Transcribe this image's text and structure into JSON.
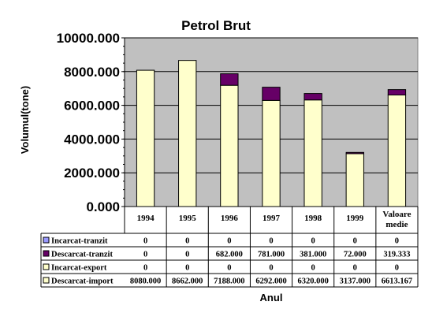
{
  "chart_data": {
    "type": "bar",
    "stacked": true,
    "title": "Petrol Brut",
    "xlabel": "Anul",
    "ylabel": "Volumul(tone)",
    "ylim": [
      0,
      10000
    ],
    "yticks": [
      "0.000",
      "2000.000",
      "4000.000",
      "6000.000",
      "8000.000",
      "10000.000"
    ],
    "ytick_values": [
      0,
      2000,
      4000,
      6000,
      8000,
      10000
    ],
    "grid": true,
    "plot_background": "#c0c0c0",
    "categories": [
      "1994",
      "1995",
      "1996",
      "1997",
      "1998",
      "1999",
      "Valoare medie"
    ],
    "series": [
      {
        "name": "Descarcat-import",
        "color": "#ffffcc",
        "values": [
          8080,
          8662,
          7188,
          6292,
          6320,
          3137,
          6613.167
        ]
      },
      {
        "name": "Incarcat-export",
        "color": "#ffffcc",
        "values": [
          0,
          0,
          0,
          0,
          0,
          0,
          0
        ]
      },
      {
        "name": "Descarcat-tranzit",
        "color": "#660066",
        "values": [
          0,
          0,
          682,
          781,
          381,
          72,
          319.333
        ]
      },
      {
        "name": "Incarcat-tranzit",
        "color": "#9999ff",
        "values": [
          0,
          0,
          0,
          0,
          0,
          0,
          0
        ]
      }
    ],
    "table": {
      "header": [
        "1994",
        "1995",
        "1996",
        "1997",
        "1998",
        "1999",
        "Valoare medie"
      ],
      "rows": [
        {
          "label": "Incarcat-tranzit",
          "color": "#9999ff",
          "cells": [
            "0",
            "0",
            "0",
            "0",
            "0",
            "0",
            "0"
          ]
        },
        {
          "label": "Descarcat-tranzit",
          "color": "#660066",
          "cells": [
            "0",
            "0",
            "682.000",
            "781.000",
            "381.000",
            "72.000",
            "319.333"
          ]
        },
        {
          "label": "Incarcat-export",
          "color": "#ffffcc",
          "cells": [
            "0",
            "0",
            "0",
            "0",
            "0",
            "0",
            "0"
          ]
        },
        {
          "label": "Descarcat-import",
          "color": "#ffffcc",
          "cells": [
            "8080.000",
            "8662.000",
            "7188.000",
            "6292.000",
            "6320.000",
            "3137.000",
            "6613.167"
          ]
        }
      ]
    }
  }
}
